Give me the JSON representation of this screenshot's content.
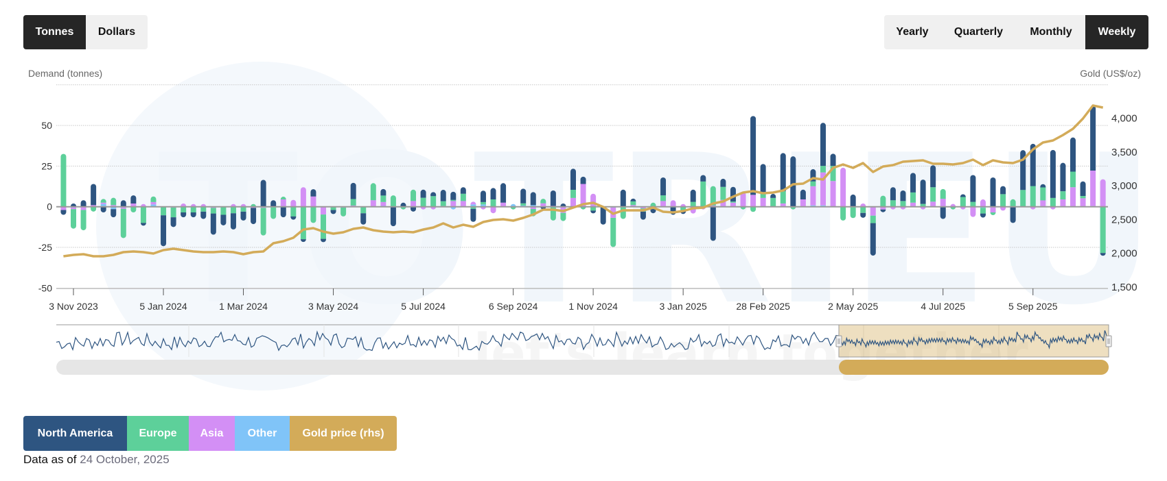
{
  "toolbar": {
    "unit_buttons": [
      {
        "label": "Tonnes",
        "active": true
      },
      {
        "label": "Dollars",
        "active": false
      }
    ],
    "period_buttons": [
      {
        "label": "Yearly",
        "active": false
      },
      {
        "label": "Quarterly",
        "active": false
      },
      {
        "label": "Monthly",
        "active": false
      },
      {
        "label": "Weekly",
        "active": true
      }
    ]
  },
  "legend": [
    {
      "label": "North America",
      "color": "#2e5581"
    },
    {
      "label": "Europe",
      "color": "#5dd09a"
    },
    {
      "label": "Asia",
      "color": "#d38ff5"
    },
    {
      "label": "Other",
      "color": "#80c4f8"
    },
    {
      "label": "Gold price (rhs)",
      "color": "#d3ab59"
    }
  ],
  "footer": {
    "prefix": "Data as of",
    "date": "24 October, 2025"
  },
  "watermark": {
    "brand": "TOTRIEU",
    "tagline": "let's learn together"
  },
  "chart_data": {
    "type": "bar",
    "stacked": true,
    "ylabel": "Demand (tonnes)",
    "y2label": "Gold (US$/oz)",
    "ylim": [
      -50,
      75
    ],
    "y_ticks": [
      "50",
      "25",
      "0",
      "-25",
      "-50"
    ],
    "y2lim": [
      1500,
      4250
    ],
    "y2_ticks": [
      "4,000",
      "3,500",
      "3,000",
      "2,500",
      "2,000",
      "1,500"
    ],
    "grid": true,
    "legend_position": "bottom-left",
    "x_ticks": [
      "3 Nov 2023",
      "5 Jan 2024",
      "1 Mar 2024",
      "3 May 2024",
      "5 Jul 2024",
      "6 Sep 2024",
      "1 Nov 2024",
      "3 Jan 2025",
      "28 Feb 2025",
      "2 May 2025",
      "4 Jul 2025",
      "5 Sep 2025"
    ],
    "x": [
      "2023-10-27",
      "2023-11-03",
      "2023-11-10",
      "2023-11-17",
      "2023-11-24",
      "2023-12-01",
      "2023-12-08",
      "2023-12-15",
      "2023-12-22",
      "2023-12-29",
      "2024-01-05",
      "2024-01-12",
      "2024-01-19",
      "2024-01-26",
      "2024-02-02",
      "2024-02-09",
      "2024-02-16",
      "2024-02-23",
      "2024-03-01",
      "2024-03-08",
      "2024-03-15",
      "2024-03-22",
      "2024-03-29",
      "2024-04-05",
      "2024-04-12",
      "2024-04-19",
      "2024-04-26",
      "2024-05-03",
      "2024-05-10",
      "2024-05-17",
      "2024-05-24",
      "2024-05-31",
      "2024-06-07",
      "2024-06-14",
      "2024-06-21",
      "2024-06-28",
      "2024-07-05",
      "2024-07-12",
      "2024-07-19",
      "2024-07-26",
      "2024-08-02",
      "2024-08-09",
      "2024-08-16",
      "2024-08-23",
      "2024-08-30",
      "2024-09-06",
      "2024-09-13",
      "2024-09-20",
      "2024-09-27",
      "2024-10-04",
      "2024-10-11",
      "2024-10-18",
      "2024-10-25",
      "2024-11-01",
      "2024-11-08",
      "2024-11-15",
      "2024-11-22",
      "2024-11-29",
      "2024-12-06",
      "2024-12-13",
      "2024-12-20",
      "2024-12-27",
      "2025-01-03",
      "2025-01-10",
      "2025-01-17",
      "2025-01-24",
      "2025-01-31",
      "2025-02-07",
      "2025-02-14",
      "2025-02-21",
      "2025-02-28",
      "2025-03-07",
      "2025-03-14",
      "2025-03-21",
      "2025-03-28",
      "2025-04-04",
      "2025-04-11",
      "2025-04-18",
      "2025-04-25",
      "2025-05-02",
      "2025-05-09",
      "2025-05-16",
      "2025-05-23",
      "2025-05-30",
      "2025-06-06",
      "2025-06-13",
      "2025-06-20",
      "2025-06-27",
      "2025-07-04",
      "2025-07-11",
      "2025-07-18",
      "2025-07-25",
      "2025-08-01",
      "2025-08-08",
      "2025-08-15",
      "2025-08-22",
      "2025-08-29",
      "2025-09-05",
      "2025-09-12",
      "2025-09-19",
      "2025-09-26",
      "2025-10-03",
      "2025-10-10",
      "2025-10-17",
      "2025-10-24"
    ],
    "series": [
      {
        "name": "North America",
        "color": "#2e5581",
        "values": [
          -3,
          2,
          4,
          13,
          -3.5,
          -5,
          4,
          5,
          -1.5,
          0,
          -19,
          -6,
          -3,
          -3,
          -4.5,
          -13,
          -6.5,
          -10,
          -5.5,
          -10,
          16.5,
          4,
          -6.5,
          -2,
          -1,
          4.5,
          -2,
          -2.5,
          0,
          10,
          -7,
          0,
          4,
          -12,
          2.5,
          -3,
          5,
          2.5,
          7,
          5,
          4,
          -8,
          7,
          7,
          12,
          0,
          9,
          8,
          -1,
          9.5,
          2,
          13,
          4.5,
          -1,
          -11,
          0,
          10.5,
          0.7,
          -5,
          -4,
          11,
          -5,
          -1.5,
          7.5,
          4,
          -21,
          5,
          9,
          0,
          48.5,
          18.5,
          2.5,
          23.5,
          31,
          6,
          7.5,
          26.5,
          7.5,
          0,
          7.5,
          -3,
          -20,
          -1.5,
          8,
          6.5,
          12,
          15,
          13.5,
          -7.5,
          0,
          0.8,
          16.5,
          -2.5,
          18,
          5,
          -10,
          24.5,
          26,
          2,
          29.5,
          17.5,
          21,
          9,
          40,
          -1
        ]
      },
      {
        "name": "Europe",
        "color": "#5dd09a",
        "values": [
          32.5,
          -12,
          -12.5,
          -3,
          2.3,
          4.5,
          -18,
          -3.5,
          -10,
          3.4,
          -5,
          -6,
          -3.5,
          -3.5,
          -3,
          -3.5,
          -5,
          -4,
          -3,
          1.5,
          -17,
          -7.5,
          0.8,
          -6,
          -20,
          -10,
          -15,
          -2,
          -5.5,
          4,
          -4,
          10.5,
          4,
          7,
          -0.7,
          7,
          5.5,
          6.5,
          3,
          0.7,
          4.5,
          -1.3,
          1.5,
          4.5,
          0,
          -1.5,
          1.4,
          -4.5,
          2.8,
          -8.5,
          -5,
          5,
          -1.7,
          -2.4,
          0,
          -18,
          -7.5,
          2.3,
          -2,
          2.5,
          3.5,
          0,
          -2.8,
          3,
          15.5,
          12,
          8,
          0.7,
          -1.7,
          -3.2,
          2.4,
          5.4,
          7.5,
          -0.7,
          0,
          3,
          4,
          9.3,
          -8.5,
          -7,
          -3.8,
          -4.6,
          6.8,
          4,
          3.5,
          6.3,
          1.7,
          8.9,
          6,
          -0.7,
          6,
          3,
          -3.5,
          -0.7,
          7.7,
          4.6,
          10.3,
          12.7,
          8,
          5.4,
          5,
          9.6,
          1.4,
          0,
          -28.5
        ]
      },
      {
        "name": "Asia",
        "color": "#d38ff5",
        "values": [
          -2,
          -1,
          -2,
          1,
          0.8,
          1,
          -1.3,
          2,
          0.4,
          1.5,
          0,
          -0.5,
          2,
          0.5,
          1,
          -0.7,
          0,
          0.5,
          1.4,
          -0.7,
          -0.7,
          0,
          4.5,
          4.2,
          12,
          6.3,
          -4.8,
          0,
          -0.5,
          0.7,
          0,
          4,
          2.4,
          0,
          0,
          3.5,
          -0.7,
          -1.3,
          0.4,
          3.5,
          3.5,
          1.5,
          -1.3,
          -4,
          2.5,
          0,
          0,
          -1.4,
          2.1,
          0.5,
          -3.8,
          5.4,
          14,
          8,
          0,
          -6.3,
          0,
          1,
          -1,
          0,
          3.5,
          4,
          1,
          -4.2,
          -1,
          0.7,
          4.2,
          2.5,
          9,
          7.3,
          5.4,
          0,
          2,
          0,
          4.5,
          11.8,
          20.3,
          15.8,
          24,
          0,
          2,
          -5.5,
          -1.7,
          -0.5,
          -1.3,
          2.5,
          -1,
          3.1,
          4.9,
          1.7,
          -0.7,
          -6.3,
          4.5,
          -3.5,
          -2.4,
          0,
          0,
          -1.3,
          3.9,
          -0.3,
          4.5,
          12,
          5.2,
          21.8,
          16.9
        ]
      },
      {
        "name": "Other",
        "color": "#80c4f8",
        "values": [
          0,
          -0.5,
          0,
          0,
          1.7,
          -1.5,
          0,
          0,
          0,
          1.4,
          -0.3,
          0,
          0,
          0,
          0,
          0,
          0,
          0,
          0,
          0,
          0,
          0,
          0,
          0,
          0,
          0,
          0,
          0,
          0,
          0,
          0,
          0,
          0.5,
          0,
          0,
          0,
          0,
          0,
          0,
          -0.3,
          0,
          1.4,
          1.4,
          0,
          0,
          0.3,
          0.7,
          1,
          0,
          0,
          0,
          0,
          0,
          0,
          0,
          -0.5,
          0,
          0,
          0,
          0,
          0,
          0,
          0,
          0,
          0,
          0,
          0,
          0,
          0,
          0,
          0,
          0,
          0,
          0,
          0,
          0.8,
          0.8,
          0,
          0,
          0,
          0,
          0,
          0,
          0,
          0,
          0,
          0,
          0,
          0,
          0,
          0,
          0,
          -0.7,
          0,
          0,
          0,
          0,
          0,
          0,
          0,
          0,
          0,
          0,
          0.4,
          0
        ]
      },
      {
        "name": "Gold price (rhs)",
        "color": "#d3ab59",
        "type": "line",
        "axis": "right",
        "values": [
          1956,
          1977,
          1987,
          1956,
          1956,
          1977,
          2017,
          2027,
          2017,
          1997,
          2048,
          2068,
          2048,
          2027,
          2017,
          2017,
          2027,
          2017,
          1987,
          2017,
          2027,
          2149,
          2180,
          2230,
          2352,
          2372,
          2322,
          2291,
          2311,
          2362,
          2382,
          2342,
          2322,
          2311,
          2322,
          2311,
          2352,
          2382,
          2443,
          2382,
          2423,
          2393,
          2463,
          2494,
          2504,
          2484,
          2524,
          2575,
          2646,
          2646,
          2626,
          2676,
          2727,
          2747,
          2687,
          2585,
          2636,
          2636,
          2636,
          2676,
          2616,
          2605,
          2626,
          2666,
          2676,
          2737,
          2768,
          2839,
          2900,
          2920,
          2889,
          2900,
          2930,
          3021,
          3031,
          3113,
          3092,
          3265,
          3315,
          3265,
          3336,
          3204,
          3285,
          3305,
          3356,
          3366,
          3376,
          3326,
          3326,
          3315,
          3336,
          3386,
          3305,
          3376,
          3346,
          3336,
          3386,
          3539,
          3640,
          3670,
          3751,
          3843,
          3995,
          4188,
          4157
        ]
      }
    ],
    "navigator": {
      "selected_from": "2025-04-25",
      "selected_to": "2025-10-24"
    }
  }
}
